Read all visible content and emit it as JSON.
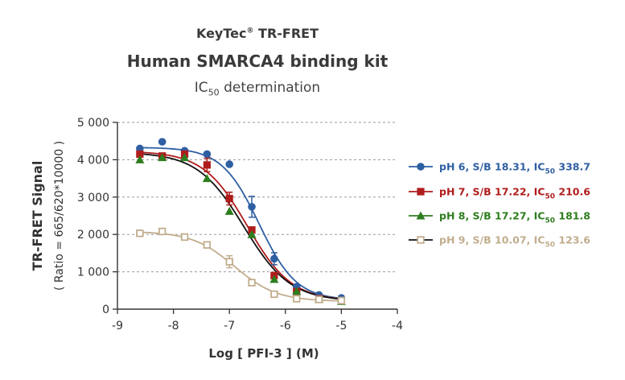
{
  "header": {
    "brand": "KeyTec",
    "brand_mark": "®",
    "brand_suffix": " TR-FRET",
    "title": "Human SMARCA4 binding kit",
    "subtitle_ic": "IC",
    "subtitle_sub": "50",
    "subtitle_rest": " determination"
  },
  "chart_data": {
    "type": "scatter",
    "xlabel": "Log [ PFI-3 ]  (M)",
    "ylabel": "TR-FRET Signal",
    "ylabel2": "( Ratio = 665/620*10000 )",
    "xlim": [
      -9,
      -4
    ],
    "ylim": [
      0,
      5000
    ],
    "xticks": [
      "-9",
      "-8",
      "-7",
      "-6",
      "-5",
      "-4"
    ],
    "yticks": [
      "0",
      "1 000",
      "2 000",
      "3 000",
      "4 000",
      "5 000"
    ],
    "grid": "horizontal dashed",
    "legend_position": "right",
    "x": [
      -8.6,
      -8.2,
      -7.8,
      -7.4,
      -7.0,
      -6.6,
      -6.2,
      -5.8,
      -5.4,
      -5.0
    ],
    "series": [
      {
        "name": "pH 6, S/B 18.31, IC50 338.7",
        "label_pre": "pH 6, S/B 18.31, IC",
        "label_sub": "50",
        "label_post": " 338.7",
        "color": "#2e5fa3",
        "marker": "circle",
        "values": [
          4300,
          4480,
          4240,
          4150,
          3880,
          2740,
          1350,
          600,
          380,
          300
        ],
        "errors": [
          0,
          0,
          0,
          0,
          0,
          280,
          160,
          0,
          0,
          0
        ],
        "fit": {
          "top": 4330,
          "bottom": 240,
          "log_ic50": -6.47,
          "hill": 1.3
        }
      },
      {
        "name": "pH 7, S/B 17.22, IC50 210.6",
        "label_pre": "pH 7, S/B 17.22, IC",
        "label_sub": "50",
        "label_post": " 210.6",
        "color": "#b01c1c",
        "marker": "square",
        "values": [
          4150,
          4100,
          4150,
          3860,
          2960,
          2120,
          900,
          470,
          280,
          220
        ],
        "errors": [
          0,
          0,
          0,
          180,
          170,
          0,
          0,
          0,
          0,
          0
        ],
        "fit": {
          "top": 4230,
          "bottom": 220,
          "log_ic50": -6.68,
          "hill": 1.1
        }
      },
      {
        "name": "pH 8, S/B 17.27, IC50 181.8",
        "label_pre": "pH 8, S/B 17.27, IC",
        "label_sub": "50",
        "label_post": " 181.8",
        "color": "#2e7d1e",
        "marker": "triangle",
        "values": [
          4000,
          4060,
          4060,
          3500,
          2620,
          2000,
          800,
          480,
          260,
          210
        ],
        "errors": [
          0,
          0,
          0,
          0,
          0,
          0,
          0,
          0,
          0,
          0
        ],
        "fit": {
          "top": 4200,
          "bottom": 210,
          "log_ic50": -6.74,
          "hill": 1.05
        }
      },
      {
        "name": "pH 9, S/B 10.07, IC50 123.6",
        "label_pre": "pH 9, S/B 10.07, IC",
        "label_sub": "50",
        "label_post": " 123.6",
        "color": "#c2ad8e",
        "marker": "open-square",
        "line_color": "#111111",
        "values": [
          2030,
          2080,
          1930,
          1720,
          1270,
          710,
          400,
          280,
          260,
          230
        ],
        "errors": [
          0,
          0,
          80,
          0,
          160,
          0,
          0,
          0,
          0,
          0
        ],
        "fit": {
          "top": 2080,
          "bottom": 210,
          "log_ic50": -6.91,
          "hill": 1.15
        }
      }
    ],
    "curve_colors": [
      "#2e5fa3",
      "#b01c1c",
      "#111111",
      "#c2ad8e"
    ]
  }
}
